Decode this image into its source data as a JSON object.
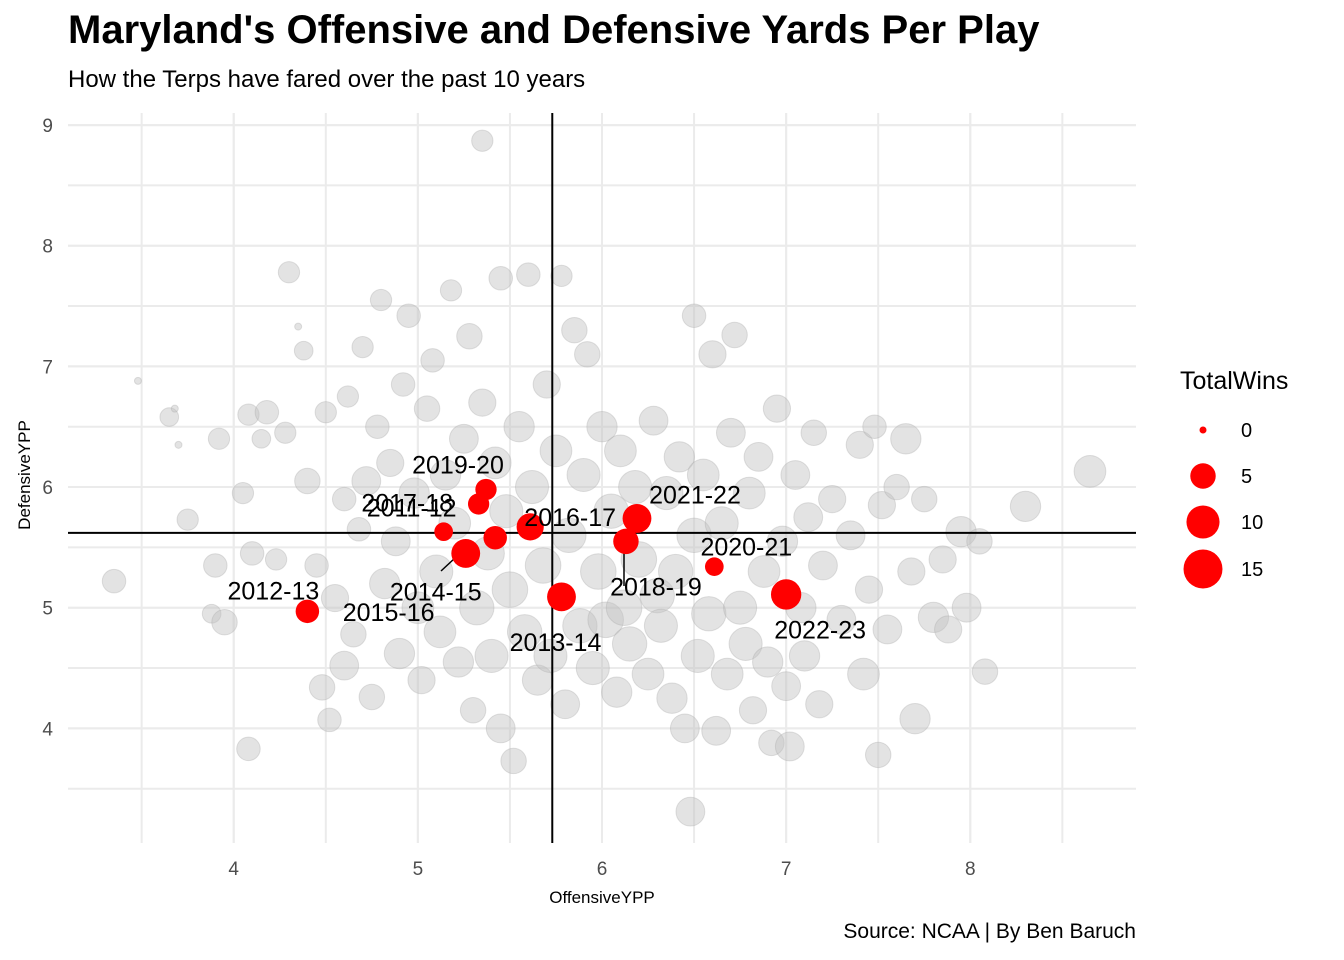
{
  "chart_data": {
    "type": "scatter",
    "title": "Maryland's Offensive and Defensive Yards Per Play",
    "subtitle": "How the Terps have fared over the past 10 years",
    "caption": "Source: NCAA | By Ben Baruch",
    "xlabel": "OffensiveYPP",
    "ylabel": "DefensiveYPP",
    "xlim": [
      3.1,
      8.9
    ],
    "ylim": [
      3.05,
      9.1
    ],
    "x_ticks": [
      "4",
      "5",
      "6",
      "7",
      "8"
    ],
    "y_ticks": [
      "4",
      "5",
      "6",
      "7",
      "8",
      "9"
    ],
    "reference_lines": {
      "x": 5.73,
      "y": 5.62
    },
    "grid": true,
    "size_legend": {
      "title": "TotalWins",
      "entries": [
        {
          "label": "0",
          "value": 0
        },
        {
          "label": "5",
          "value": 5
        },
        {
          "label": "10",
          "value": 10
        },
        {
          "label": "15",
          "value": 15
        }
      ],
      "position": "right"
    },
    "highlight_color": "#ff0000",
    "background_color": "#c0c0c0",
    "highlight_series": [
      {
        "label": "2012-13",
        "x": 4.4,
        "y": 4.97,
        "wins": 4
      },
      {
        "label": "2011-12",
        "x": 5.14,
        "y": 5.63,
        "wins": 2
      },
      {
        "label": "2014-15",
        "x": 5.26,
        "y": 5.45,
        "wins": 7
      },
      {
        "label": "2017-18",
        "x": 5.42,
        "y": 5.58,
        "wins": 4
      },
      {
        "label": "2019-20",
        "x": 5.37,
        "y": 5.98,
        "wins": 3
      },
      {
        "label": "2015-16",
        "x": 5.33,
        "y": 5.86,
        "wins": 3
      },
      {
        "label": "2016-17",
        "x": 5.61,
        "y": 5.67,
        "wins": 6
      },
      {
        "label": "2013-14",
        "x": 5.78,
        "y": 5.09,
        "wins": 7
      },
      {
        "label": "2018-19",
        "x": 6.13,
        "y": 5.55,
        "wins": 5
      },
      {
        "label": "2021-22",
        "x": 6.19,
        "y": 5.74,
        "wins": 7
      },
      {
        "label": "2020-21",
        "x": 6.61,
        "y": 5.34,
        "wins": 2
      },
      {
        "label": "2022-23",
        "x": 7.0,
        "y": 5.11,
        "wins": 8
      }
    ],
    "background_points": [
      [
        3.35,
        5.22,
        4
      ],
      [
        3.48,
        6.88,
        0
      ],
      [
        3.65,
        6.58,
        2
      ],
      [
        3.68,
        6.65,
        0
      ],
      [
        3.7,
        6.35,
        0
      ],
      [
        3.75,
        5.73,
        3
      ],
      [
        3.88,
        4.95,
        2
      ],
      [
        3.9,
        5.35,
        4
      ],
      [
        3.92,
        6.4,
        3
      ],
      [
        3.95,
        4.88,
        5
      ],
      [
        4.05,
        5.95,
        3
      ],
      [
        4.08,
        6.6,
        3
      ],
      [
        4.08,
        3.83,
        4
      ],
      [
        4.1,
        5.45,
        4
      ],
      [
        4.15,
        6.4,
        2
      ],
      [
        4.18,
        6.62,
        4
      ],
      [
        4.23,
        5.4,
        3
      ],
      [
        4.28,
        6.45,
        3
      ],
      [
        4.3,
        7.78,
        3
      ],
      [
        4.35,
        7.33,
        0
      ],
      [
        4.38,
        7.13,
        2
      ],
      [
        4.4,
        6.05,
        5
      ],
      [
        4.45,
        5.35,
        4
      ],
      [
        4.48,
        4.34,
        5
      ],
      [
        4.5,
        6.62,
        3
      ],
      [
        4.52,
        4.07,
        4
      ],
      [
        4.55,
        5.08,
        6
      ],
      [
        4.6,
        5.9,
        4
      ],
      [
        4.6,
        4.52,
        7
      ],
      [
        4.62,
        6.75,
        3
      ],
      [
        4.65,
        4.78,
        5
      ],
      [
        4.68,
        5.65,
        4
      ],
      [
        4.7,
        7.16,
        3
      ],
      [
        4.72,
        6.05,
        7
      ],
      [
        4.75,
        4.26,
        5
      ],
      [
        4.78,
        6.5,
        4
      ],
      [
        4.8,
        7.55,
        3
      ],
      [
        4.82,
        5.2,
        8
      ],
      [
        4.85,
        6.2,
        6
      ],
      [
        4.88,
        5.55,
        7
      ],
      [
        4.9,
        4.62,
        8
      ],
      [
        4.92,
        6.85,
        4
      ],
      [
        4.95,
        7.42,
        4
      ],
      [
        4.98,
        5.95,
        8
      ],
      [
        5.0,
        5.0,
        9
      ],
      [
        5.02,
        4.4,
        6
      ],
      [
        5.05,
        6.65,
        5
      ],
      [
        5.08,
        7.05,
        4
      ],
      [
        5.1,
        5.3,
        10
      ],
      [
        5.12,
        4.8,
        9
      ],
      [
        5.15,
        6.1,
        8
      ],
      [
        5.18,
        7.63,
        3
      ],
      [
        5.2,
        5.7,
        9
      ],
      [
        5.22,
        4.55,
        8
      ],
      [
        5.25,
        6.4,
        7
      ],
      [
        5.28,
        7.25,
        5
      ],
      [
        5.3,
        4.15,
        5
      ],
      [
        5.32,
        5.0,
        11
      ],
      [
        5.35,
        8.87,
        3
      ],
      [
        5.35,
        6.7,
        6
      ],
      [
        5.38,
        5.45,
        10
      ],
      [
        5.4,
        4.6,
        10
      ],
      [
        5.42,
        6.2,
        9
      ],
      [
        5.45,
        7.73,
        4
      ],
      [
        5.45,
        4.0,
        7
      ],
      [
        5.48,
        5.8,
        10
      ],
      [
        5.5,
        5.15,
        12
      ],
      [
        5.52,
        3.73,
        5
      ],
      [
        5.55,
        6.5,
        8
      ],
      [
        5.58,
        4.8,
        11
      ],
      [
        5.6,
        7.76,
        4
      ],
      [
        5.62,
        6.0,
        10
      ],
      [
        5.65,
        4.4,
        8
      ],
      [
        5.68,
        5.35,
        12
      ],
      [
        5.7,
        6.85,
        6
      ],
      [
        5.72,
        4.6,
        10
      ],
      [
        5.75,
        6.3,
        9
      ],
      [
        5.78,
        7.75,
        3
      ],
      [
        5.8,
        4.2,
        7
      ],
      [
        5.82,
        5.6,
        11
      ],
      [
        5.85,
        7.3,
        5
      ],
      [
        5.88,
        4.85,
        11
      ],
      [
        5.9,
        6.1,
        10
      ],
      [
        5.92,
        7.1,
        5
      ],
      [
        5.95,
        4.5,
        10
      ],
      [
        5.98,
        5.3,
        12
      ],
      [
        6.0,
        6.5,
        8
      ],
      [
        6.02,
        4.9,
        12
      ],
      [
        6.05,
        5.8,
        11
      ],
      [
        6.08,
        4.3,
        8
      ],
      [
        6.1,
        6.3,
        9
      ],
      [
        6.12,
        5.0,
        12
      ],
      [
        6.15,
        4.7,
        11
      ],
      [
        6.18,
        6.0,
        10
      ],
      [
        6.2,
        5.4,
        12
      ],
      [
        6.25,
        4.45,
        9
      ],
      [
        6.28,
        6.55,
        7
      ],
      [
        6.3,
        5.1,
        11
      ],
      [
        6.32,
        4.85,
        10
      ],
      [
        6.35,
        5.95,
        10
      ],
      [
        6.38,
        4.25,
        8
      ],
      [
        6.4,
        5.3,
        11
      ],
      [
        6.42,
        6.25,
        8
      ],
      [
        6.45,
        4.0,
        7
      ],
      [
        6.48,
        3.31,
        7
      ],
      [
        6.5,
        7.42,
        4
      ],
      [
        6.5,
        5.6,
        11
      ],
      [
        6.52,
        4.6,
        10
      ],
      [
        6.55,
        6.1,
        9
      ],
      [
        6.58,
        4.95,
        11
      ],
      [
        6.6,
        7.1,
        6
      ],
      [
        6.62,
        3.98,
        7
      ],
      [
        6.65,
        5.7,
        10
      ],
      [
        6.68,
        4.45,
        9
      ],
      [
        6.7,
        6.45,
        7
      ],
      [
        6.72,
        7.26,
        5
      ],
      [
        6.75,
        5.0,
        10
      ],
      [
        6.78,
        4.7,
        10
      ],
      [
        6.8,
        5.95,
        9
      ],
      [
        6.82,
        4.15,
        6
      ],
      [
        6.85,
        6.25,
        7
      ],
      [
        6.88,
        5.3,
        9
      ],
      [
        6.9,
        4.55,
        8
      ],
      [
        6.92,
        3.88,
        5
      ],
      [
        6.95,
        6.65,
        6
      ],
      [
        6.98,
        5.55,
        8
      ],
      [
        7.0,
        4.35,
        7
      ],
      [
        7.02,
        3.85,
        7
      ],
      [
        7.05,
        6.1,
        7
      ],
      [
        7.08,
        5.0,
        8
      ],
      [
        7.1,
        4.6,
        8
      ],
      [
        7.12,
        5.75,
        7
      ],
      [
        7.15,
        6.45,
        5
      ],
      [
        7.18,
        4.2,
        6
      ],
      [
        7.2,
        5.35,
        7
      ],
      [
        7.25,
        5.9,
        6
      ],
      [
        7.3,
        4.9,
        7
      ],
      [
        7.35,
        5.6,
        7
      ],
      [
        7.4,
        6.35,
        6
      ],
      [
        7.42,
        4.45,
        9
      ],
      [
        7.45,
        5.15,
        6
      ],
      [
        7.48,
        6.5,
        4
      ],
      [
        7.5,
        3.78,
        5
      ],
      [
        7.52,
        5.85,
        6
      ],
      [
        7.55,
        4.82,
        7
      ],
      [
        7.6,
        6.0,
        5
      ],
      [
        7.65,
        6.4,
        8
      ],
      [
        7.68,
        5.3,
        6
      ],
      [
        7.7,
        4.08,
        8
      ],
      [
        7.75,
        5.9,
        5
      ],
      [
        7.8,
        4.92,
        8
      ],
      [
        7.85,
        5.4,
        6
      ],
      [
        7.88,
        4.82,
        6
      ],
      [
        7.95,
        5.63,
        8
      ],
      [
        7.98,
        5.0,
        7
      ],
      [
        8.05,
        5.55,
        5
      ],
      [
        8.08,
        4.47,
        5
      ],
      [
        8.3,
        5.84,
        8
      ],
      [
        8.65,
        6.13,
        9
      ]
    ]
  }
}
